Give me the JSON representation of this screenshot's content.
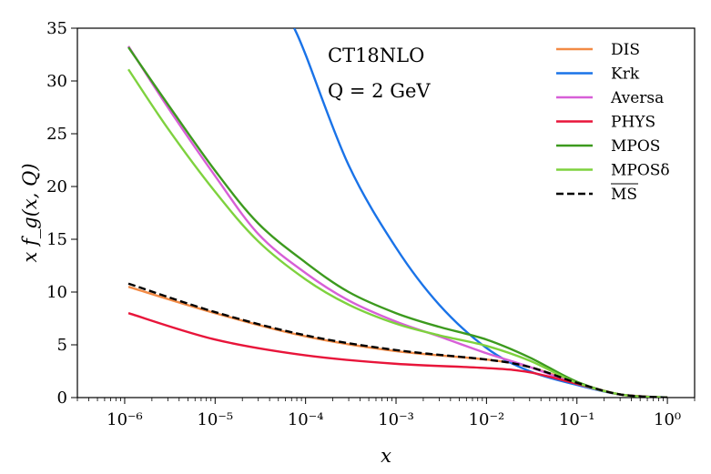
{
  "chart_data": {
    "type": "line",
    "title": "",
    "annotations": [
      "CT18NLO",
      "Q = 2 GeV"
    ],
    "xlabel": "x",
    "ylabel": "x f_g(x, Q)",
    "xscale": "log",
    "xlim": [
      3e-07,
      2
    ],
    "ylim": [
      0,
      35
    ],
    "grid": false,
    "legend_position": "top-right",
    "xticks": [
      {
        "value": 1e-06,
        "label": "10⁻⁶"
      },
      {
        "value": 1e-05,
        "label": "10⁻⁵"
      },
      {
        "value": 0.0001,
        "label": "10⁻⁴"
      },
      {
        "value": 0.001,
        "label": "10⁻³"
      },
      {
        "value": 0.01,
        "label": "10⁻²"
      },
      {
        "value": 0.1,
        "label": "10⁻¹"
      },
      {
        "value": 1,
        "label": "10⁰"
      }
    ],
    "yticks": [
      0,
      5,
      10,
      15,
      20,
      25,
      30,
      35
    ],
    "series": [
      {
        "name": "DIS",
        "color": "#f28a45",
        "dash": "solid",
        "x": [
          1.1e-06,
          1e-05,
          0.0001,
          0.001,
          0.01,
          0.03,
          0.1,
          0.3,
          1
        ],
        "y": [
          10.5,
          8.0,
          5.8,
          4.4,
          3.6,
          2.9,
          1.4,
          0.3,
          0.0
        ]
      },
      {
        "name": "Krk",
        "color": "#1a73e8",
        "dash": "solid",
        "x": [
          7.5e-05,
          0.0001,
          0.0003,
          0.001,
          0.003,
          0.01,
          0.03,
          0.1,
          0.3,
          1
        ],
        "y": [
          35.0,
          32.5,
          22.0,
          14.2,
          8.8,
          4.7,
          2.5,
          1.2,
          0.3,
          0.0
        ]
      },
      {
        "name": "Aversa",
        "color": "#d75fd7",
        "dash": "solid",
        "x": [
          1.1e-06,
          3e-06,
          1e-05,
          3e-05,
          0.0001,
          0.0003,
          0.001,
          0.003,
          0.01,
          0.03,
          0.1,
          0.3,
          1
        ],
        "y": [
          33.3,
          27.5,
          21.0,
          15.5,
          11.8,
          9.2,
          7.2,
          5.8,
          4.2,
          2.9,
          1.3,
          0.3,
          0.0
        ]
      },
      {
        "name": "PHYS",
        "color": "#e8153a",
        "dash": "solid",
        "x": [
          1.1e-06,
          1e-05,
          0.0001,
          0.001,
          0.01,
          0.03,
          0.1,
          0.3,
          1
        ],
        "y": [
          8.0,
          5.5,
          4.0,
          3.2,
          2.8,
          2.4,
          1.3,
          0.3,
          0.0
        ]
      },
      {
        "name": "MPOS",
        "color": "#3c9a1e",
        "dash": "solid",
        "x": [
          1.1e-06,
          3e-06,
          1e-05,
          3e-05,
          0.0001,
          0.0003,
          0.001,
          0.003,
          0.01,
          0.03,
          0.1,
          0.3,
          1
        ],
        "y": [
          33.2,
          27.8,
          21.5,
          16.5,
          12.8,
          10.0,
          8.0,
          6.7,
          5.5,
          3.8,
          1.5,
          0.3,
          0.0
        ]
      },
      {
        "name": "MPOSδ",
        "color": "#7ed23e",
        "dash": "solid",
        "x": [
          1.1e-06,
          3e-06,
          1e-05,
          3e-05,
          0.0001,
          0.0003,
          0.001,
          0.003,
          0.01,
          0.03,
          0.1,
          0.3,
          1
        ],
        "y": [
          31.1,
          25.5,
          19.5,
          14.8,
          11.2,
          8.8,
          7.0,
          5.9,
          4.9,
          3.5,
          1.4,
          0.3,
          0.0
        ]
      },
      {
        "name": "MS",
        "color": "#000000",
        "dash": "dashed",
        "x": [
          1.1e-06,
          1e-05,
          0.0001,
          0.001,
          0.01,
          0.03,
          0.1,
          0.3,
          1
        ],
        "y": [
          10.8,
          8.1,
          5.9,
          4.5,
          3.6,
          2.9,
          1.4,
          0.3,
          0.0
        ]
      }
    ]
  }
}
